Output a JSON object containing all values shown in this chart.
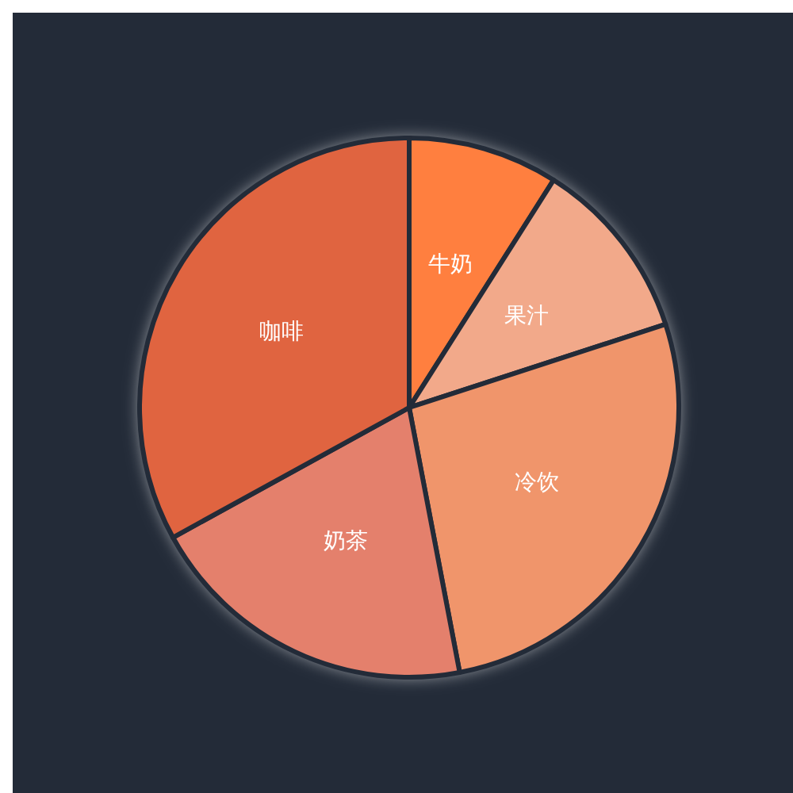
{
  "chart_data": {
    "type": "pie",
    "categories": [
      "牛奶",
      "果汁",
      "冷饮",
      "奶茶",
      "咖啡"
    ],
    "values": [
      9,
      11,
      27,
      20,
      33
    ],
    "colors": [
      "#ff7f3f",
      "#f2a98a",
      "#f0956b",
      "#e4806c",
      "#e06440"
    ]
  }
}
